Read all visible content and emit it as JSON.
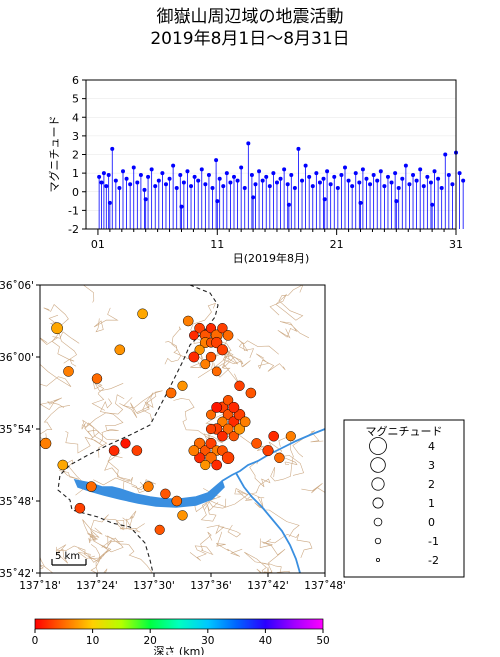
{
  "title": {
    "line1": "御嶽山周辺域の地震活動",
    "line2": "2019年8月1日〜8月31日"
  },
  "chart_data": [
    {
      "type": "scatter",
      "subtype": "magnitude-time stem plot",
      "ylabel": "マグニチュード",
      "xlabel": "日(2019年8月)",
      "xlim": [
        0,
        31
      ],
      "ylim": [
        -2,
        6
      ],
      "yticks": [
        6,
        5,
        4,
        3,
        2,
        1,
        0,
        -1,
        -2
      ],
      "xticks": [
        {
          "day": 1,
          "label": "01"
        },
        {
          "day": 11,
          "label": "11"
        },
        {
          "day": 21,
          "label": "21"
        },
        {
          "day": 31,
          "label": "31"
        }
      ],
      "series_color": "#0000ff",
      "x": [
        1.1,
        1.3,
        1.5,
        1.7,
        1.9,
        2.2,
        2.5,
        2.8,
        3.1,
        3.4,
        3.7,
        4.0,
        4.3,
        4.6,
        4.9,
        5.2,
        5.5,
        5.8,
        6.1,
        6.4,
        6.7,
        7.0,
        7.3,
        7.6,
        7.9,
        8.2,
        8.5,
        8.8,
        9.1,
        9.4,
        9.7,
        10.0,
        10.3,
        10.6,
        10.9,
        11.2,
        11.5,
        11.8,
        12.1,
        12.4,
        12.7,
        13.0,
        13.3,
        13.6,
        13.9,
        14.2,
        14.5,
        14.8,
        15.1,
        15.4,
        15.7,
        16.0,
        16.3,
        16.6,
        16.9,
        17.2,
        17.5,
        17.8,
        18.1,
        18.4,
        18.7,
        19.0,
        19.3,
        19.6,
        19.9,
        20.2,
        20.5,
        20.8,
        21.1,
        21.4,
        21.7,
        22.0,
        22.3,
        22.6,
        22.9,
        23.2,
        23.5,
        23.8,
        24.1,
        24.4,
        24.7,
        25.0,
        25.3,
        25.6,
        25.9,
        26.2,
        26.5,
        26.8,
        27.1,
        27.4,
        27.7,
        28.0,
        28.3,
        28.6,
        28.9,
        29.2,
        29.5,
        29.8,
        30.1,
        30.4,
        30.7,
        31.0,
        31.3,
        31.6,
        2.0,
        5.0,
        8.0,
        11.0,
        14.0,
        17.0,
        20.0,
        23.0,
        26.0,
        29.0
      ],
      "y": [
        0.8,
        0.5,
        1.0,
        0.3,
        0.9,
        2.3,
        0.6,
        0.2,
        1.1,
        0.7,
        0.4,
        1.3,
        0.5,
        0.9,
        0.1,
        0.8,
        1.2,
        0.3,
        0.6,
        1.0,
        0.4,
        0.7,
        1.4,
        0.2,
        0.9,
        0.5,
        1.1,
        0.3,
        0.8,
        0.6,
        1.2,
        0.4,
        0.9,
        0.2,
        1.7,
        0.7,
        0.3,
        1.0,
        0.5,
        0.8,
        0.6,
        1.3,
        0.2,
        2.6,
        0.9,
        0.4,
        1.1,
        0.6,
        0.8,
        0.3,
        1.0,
        0.5,
        0.7,
        1.2,
        0.4,
        0.9,
        0.2,
        2.3,
        0.6,
        1.4,
        0.8,
        0.3,
        1.0,
        0.5,
        0.7,
        1.1,
        0.4,
        0.8,
        0.2,
        0.9,
        1.3,
        0.6,
        0.3,
        1.0,
        0.5,
        1.2,
        0.7,
        0.4,
        0.9,
        0.6,
        1.1,
        0.3,
        0.8,
        0.5,
        1.0,
        0.2,
        0.7,
        1.4,
        0.4,
        0.9,
        0.6,
        1.2,
        0.3,
        0.8,
        0.5,
        1.1,
        0.7,
        0.2,
        2.0,
        0.9,
        0.4,
        2.1,
        1.0,
        0.6,
        -0.6,
        -0.4,
        -0.8,
        -0.5,
        -0.3,
        -0.7,
        -0.4,
        -0.6,
        -0.5,
        -0.7
      ]
    },
    {
      "type": "scatter",
      "subtype": "epicenter map",
      "xticks": [
        "137˚18'",
        "137˚24'",
        "137˚30'",
        "137˚36'",
        "137˚42'",
        "137˚48'"
      ],
      "yticks": [
        "36˚06'",
        "36˚00'",
        "35˚54'",
        "35˚48'",
        "35˚42'"
      ],
      "xlim_deg": [
        137.3,
        137.8
      ],
      "ylim_deg": [
        35.7,
        36.1
      ],
      "scale_label": "5 km",
      "legend": {
        "title": "マグニチュード",
        "entries": [
          {
            "label": "4",
            "mag": 4
          },
          {
            "label": "3",
            "mag": 3
          },
          {
            "label": "2",
            "mag": 2
          },
          {
            "label": "1",
            "mag": 1
          },
          {
            "label": "0",
            "mag": 0
          },
          {
            "label": "-1",
            "mag": -1
          },
          {
            "label": "-2",
            "mag": -2
          }
        ]
      },
      "colorbar": {
        "label": "深さ (km)",
        "ticks": [
          "0",
          "10",
          "20",
          "30",
          "40",
          "50"
        ],
        "range": [
          0,
          50
        ]
      },
      "events": [
        {
          "lon": 137.58,
          "lat": 36.04,
          "mag": 1.0,
          "depth": 3
        },
        {
          "lon": 137.59,
          "lat": 36.03,
          "mag": 1.2,
          "depth": 4
        },
        {
          "lon": 137.6,
          "lat": 36.04,
          "mag": 0.8,
          "depth": 2
        },
        {
          "lon": 137.61,
          "lat": 36.03,
          "mag": 1.5,
          "depth": 5
        },
        {
          "lon": 137.62,
          "lat": 36.04,
          "mag": 0.9,
          "depth": 3
        },
        {
          "lon": 137.59,
          "lat": 36.02,
          "mag": 1.1,
          "depth": 6
        },
        {
          "lon": 137.6,
          "lat": 36.02,
          "mag": 0.7,
          "depth": 4
        },
        {
          "lon": 137.61,
          "lat": 36.02,
          "mag": 1.3,
          "depth": 3
        },
        {
          "lon": 137.57,
          "lat": 36.03,
          "mag": 0.6,
          "depth": 2
        },
        {
          "lon": 137.63,
          "lat": 36.03,
          "mag": 1.0,
          "depth": 5
        },
        {
          "lon": 137.58,
          "lat": 36.01,
          "mag": 0.8,
          "depth": 7
        },
        {
          "lon": 137.6,
          "lat": 36.0,
          "mag": 0.9,
          "depth": 4
        },
        {
          "lon": 137.62,
          "lat": 36.01,
          "mag": 1.2,
          "depth": 3
        },
        {
          "lon": 137.59,
          "lat": 35.99,
          "mag": 0.7,
          "depth": 6
        },
        {
          "lon": 137.57,
          "lat": 36.0,
          "mag": 1.1,
          "depth": 2
        },
        {
          "lon": 137.61,
          "lat": 35.98,
          "mag": 0.6,
          "depth": 5
        },
        {
          "lon": 137.62,
          "lat": 35.93,
          "mag": 1.4,
          "depth": 3
        },
        {
          "lon": 137.63,
          "lat": 35.92,
          "mag": 1.0,
          "depth": 4
        },
        {
          "lon": 137.64,
          "lat": 35.91,
          "mag": 1.2,
          "depth": 2
        },
        {
          "lon": 137.62,
          "lat": 35.91,
          "mag": 0.9,
          "depth": 6
        },
        {
          "lon": 137.63,
          "lat": 35.9,
          "mag": 1.1,
          "depth": 5
        },
        {
          "lon": 137.61,
          "lat": 35.9,
          "mag": 1.3,
          "depth": 3
        },
        {
          "lon": 137.64,
          "lat": 35.89,
          "mag": 0.8,
          "depth": 4
        },
        {
          "lon": 137.62,
          "lat": 35.89,
          "mag": 1.0,
          "depth": 2
        },
        {
          "lon": 137.65,
          "lat": 35.9,
          "mag": 1.2,
          "depth": 7
        },
        {
          "lon": 137.6,
          "lat": 35.92,
          "mag": 0.7,
          "depth": 5
        },
        {
          "lon": 137.65,
          "lat": 35.92,
          "mag": 1.4,
          "depth": 3
        },
        {
          "lon": 137.63,
          "lat": 35.94,
          "mag": 0.9,
          "depth": 4
        },
        {
          "lon": 137.61,
          "lat": 35.93,
          "mag": 1.1,
          "depth": 1
        },
        {
          "lon": 137.66,
          "lat": 35.91,
          "mag": 1.0,
          "depth": 6
        },
        {
          "lon": 137.64,
          "lat": 35.93,
          "mag": 1.2,
          "depth": 2
        },
        {
          "lon": 137.6,
          "lat": 35.9,
          "mag": 0.8,
          "depth": 3
        },
        {
          "lon": 137.58,
          "lat": 35.88,
          "mag": 1.3,
          "depth": 5
        },
        {
          "lon": 137.59,
          "lat": 35.87,
          "mag": 1.0,
          "depth": 4
        },
        {
          "lon": 137.6,
          "lat": 35.88,
          "mag": 1.2,
          "depth": 3
        },
        {
          "lon": 137.61,
          "lat": 35.87,
          "mag": 0.9,
          "depth": 6
        },
        {
          "lon": 137.58,
          "lat": 35.86,
          "mag": 1.1,
          "depth": 2
        },
        {
          "lon": 137.6,
          "lat": 35.86,
          "mag": 1.4,
          "depth": 5
        },
        {
          "lon": 137.62,
          "lat": 35.87,
          "mag": 1.0,
          "depth": 4
        },
        {
          "lon": 137.63,
          "lat": 35.86,
          "mag": 1.8,
          "depth": 3
        },
        {
          "lon": 137.59,
          "lat": 35.85,
          "mag": 0.8,
          "depth": 7
        },
        {
          "lon": 137.61,
          "lat": 35.85,
          "mag": 1.0,
          "depth": 2
        },
        {
          "lon": 137.57,
          "lat": 35.87,
          "mag": 1.1,
          "depth": 6
        },
        {
          "lon": 137.68,
          "lat": 35.88,
          "mag": 1.0,
          "depth": 4
        },
        {
          "lon": 137.7,
          "lat": 35.87,
          "mag": 1.2,
          "depth": 3
        },
        {
          "lon": 137.72,
          "lat": 35.86,
          "mag": 0.9,
          "depth": 5
        },
        {
          "lon": 137.71,
          "lat": 35.89,
          "mag": 1.0,
          "depth": 2
        },
        {
          "lon": 137.74,
          "lat": 35.89,
          "mag": 0.8,
          "depth": 6
        },
        {
          "lon": 137.67,
          "lat": 35.95,
          "mag": 1.0,
          "depth": 4
        },
        {
          "lon": 137.65,
          "lat": 35.96,
          "mag": 0.9,
          "depth": 3
        },
        {
          "lon": 137.33,
          "lat": 36.04,
          "mag": 1.5,
          "depth": 8
        },
        {
          "lon": 137.35,
          "lat": 35.98,
          "mag": 1.0,
          "depth": 6
        },
        {
          "lon": 137.44,
          "lat": 36.01,
          "mag": 1.0,
          "depth": 7
        },
        {
          "lon": 137.4,
          "lat": 35.97,
          "mag": 0.9,
          "depth": 5
        },
        {
          "lon": 137.31,
          "lat": 35.88,
          "mag": 1.3,
          "depth": 6
        },
        {
          "lon": 137.34,
          "lat": 35.85,
          "mag": 1.0,
          "depth": 8
        },
        {
          "lon": 137.37,
          "lat": 35.79,
          "mag": 1.0,
          "depth": 3
        },
        {
          "lon": 137.39,
          "lat": 35.82,
          "mag": 1.0,
          "depth": 5
        },
        {
          "lon": 137.43,
          "lat": 35.87,
          "mag": 1.0,
          "depth": 2
        },
        {
          "lon": 137.45,
          "lat": 35.88,
          "mag": 0.8,
          "depth": 1
        },
        {
          "lon": 137.49,
          "lat": 35.82,
          "mag": 1.0,
          "depth": 6
        },
        {
          "lon": 137.52,
          "lat": 35.81,
          "mag": 0.9,
          "depth": 4
        },
        {
          "lon": 137.54,
          "lat": 35.8,
          "mag": 1.0,
          "depth": 5
        },
        {
          "lon": 137.55,
          "lat": 35.78,
          "mag": 0.9,
          "depth": 7
        },
        {
          "lon": 137.51,
          "lat": 35.76,
          "mag": 0.8,
          "depth": 4
        },
        {
          "lon": 137.48,
          "lat": 36.06,
          "mag": 1.0,
          "depth": 8
        },
        {
          "lon": 137.56,
          "lat": 36.05,
          "mag": 1.0,
          "depth": 6
        },
        {
          "lon": 137.53,
          "lat": 35.95,
          "mag": 1.0,
          "depth": 5
        },
        {
          "lon": 137.55,
          "lat": 35.96,
          "mag": 0.8,
          "depth": 7
        },
        {
          "lon": 137.47,
          "lat": 35.87,
          "mag": 1.0,
          "depth": 3
        }
      ]
    }
  ]
}
